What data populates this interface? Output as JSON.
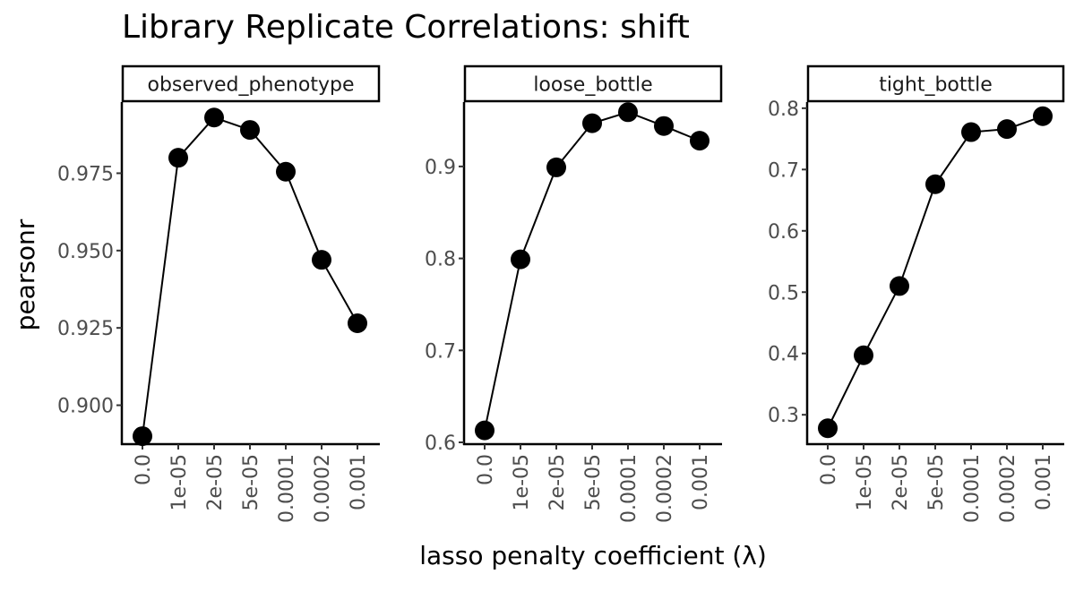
{
  "chart_data": {
    "type": "line",
    "title": "Library Replicate Correlations: shift",
    "xlabel": "lasso penalty coefficient (λ)",
    "ylabel": "pearsonr",
    "categories": [
      "0.0",
      "1e-05",
      "2e-05",
      "5e-05",
      "0.0001",
      "0.0002",
      "0.001"
    ],
    "panels": [
      {
        "name": "observed_phenotype",
        "values": [
          0.89,
          0.98,
          0.993,
          0.989,
          0.9755,
          0.947,
          0.9265
        ],
        "ylim": [
          0.888,
          0.998
        ],
        "yticks": [
          0.9,
          0.925,
          0.95,
          0.975
        ],
        "yticklabels": [
          "0.900",
          "0.925",
          "0.950",
          "0.975"
        ]
      },
      {
        "name": "loose_bottle",
        "values": [
          0.613,
          0.799,
          0.899,
          0.947,
          0.959,
          0.944,
          0.928
        ],
        "ylim": [
          0.6,
          0.97
        ],
        "yticks": [
          0.6,
          0.7,
          0.8,
          0.9
        ],
        "yticklabels": [
          "0.6",
          "0.7",
          "0.8",
          "0.9"
        ]
      },
      {
        "name": "tight_bottle",
        "values": [
          0.278,
          0.397,
          0.51,
          0.676,
          0.761,
          0.766,
          0.787
        ],
        "ylim": [
          0.255,
          0.81
        ],
        "yticks": [
          0.3,
          0.4,
          0.5,
          0.6,
          0.7,
          0.8
        ],
        "yticklabels": [
          "0.3",
          "0.4",
          "0.5",
          "0.6",
          "0.7",
          "0.8"
        ]
      }
    ],
    "grid": false,
    "legend": "none",
    "colors": {
      "points": "#000000",
      "lines": "#000000",
      "axis": "#000000",
      "tick_labels": "#4d4d4d"
    }
  }
}
